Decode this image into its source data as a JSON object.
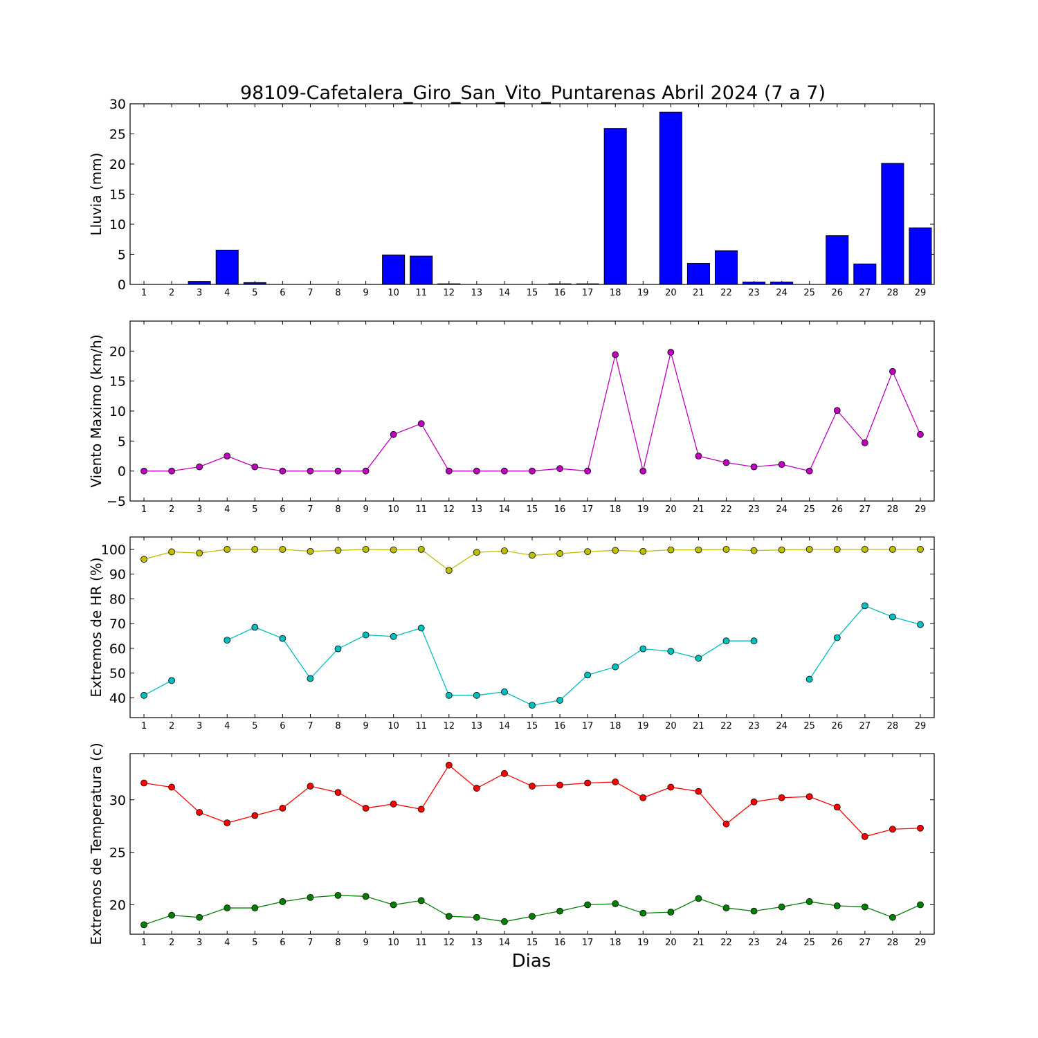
{
  "title": "98109-Cafetalera_Giro_San_Vito_Puntarenas Abril 2024  (7 a 7)",
  "xlabel": "Dias",
  "chart_data": [
    {
      "type": "bar",
      "ylabel": "Lluvia (mm)",
      "ylim": [
        0,
        30
      ],
      "yticks": [
        0,
        5,
        10,
        15,
        20,
        25,
        30
      ],
      "grid": false,
      "x": [
        1,
        2,
        3,
        4,
        5,
        6,
        7,
        8,
        9,
        10,
        11,
        12,
        13,
        14,
        15,
        16,
        17,
        18,
        19,
        20,
        21,
        22,
        23,
        24,
        25,
        26,
        27,
        28,
        29
      ],
      "series": [
        {
          "color": "#0000ff",
          "values": [
            0,
            0,
            0.5,
            5.7,
            0.3,
            0,
            0,
            0,
            0,
            4.9,
            4.7,
            0.1,
            0,
            0,
            0,
            0.1,
            0.1,
            25.9,
            0,
            28.6,
            3.5,
            5.6,
            0.4,
            0.4,
            0,
            8.1,
            3.4,
            20.1,
            9.4
          ]
        }
      ]
    },
    {
      "type": "line",
      "ylabel": "Viento Maximo (km/h)",
      "ylim": [
        -5,
        25
      ],
      "yticks": [
        -5,
        0,
        5,
        10,
        15,
        20
      ],
      "grid": false,
      "x": [
        1,
        2,
        3,
        4,
        5,
        6,
        7,
        8,
        9,
        10,
        11,
        12,
        13,
        14,
        15,
        16,
        17,
        18,
        19,
        20,
        21,
        22,
        23,
        24,
        25,
        26,
        27,
        28,
        29
      ],
      "series": [
        {
          "color": "#bf00bf",
          "values": [
            0,
            0,
            0.7,
            2.5,
            0.7,
            0,
            0,
            0,
            0,
            6.1,
            7.9,
            0,
            0,
            0,
            0,
            0.4,
            0,
            19.4,
            0,
            19.8,
            2.5,
            1.4,
            0.7,
            1.1,
            0,
            10.1,
            4.7,
            16.6,
            6.1
          ]
        }
      ]
    },
    {
      "type": "line",
      "ylabel": "Extremos de HR (%)",
      "ylim": [
        32,
        105
      ],
      "yticks": [
        40,
        50,
        60,
        70,
        80,
        90,
        100
      ],
      "grid": false,
      "x": [
        1,
        2,
        3,
        4,
        5,
        6,
        7,
        8,
        9,
        10,
        11,
        12,
        13,
        14,
        15,
        16,
        17,
        18,
        19,
        20,
        21,
        22,
        23,
        24,
        25,
        26,
        27,
        28,
        29
      ],
      "series": [
        {
          "color": "#bfbf00",
          "values": [
            96,
            99,
            98.5,
            100,
            100,
            100,
            99.2,
            99.6,
            100,
            99.8,
            100,
            91.5,
            98.8,
            99.4,
            97.6,
            98.3,
            99.1,
            99.6,
            99.2,
            99.8,
            99.8,
            100,
            99.5,
            99.8,
            100,
            100,
            100,
            100,
            100
          ]
        },
        {
          "color": "#00bfbf",
          "values": [
            41,
            47,
            null,
            63.3,
            68.5,
            64,
            47.8,
            59.8,
            65.4,
            64.8,
            68.2,
            41,
            41,
            42.4,
            37,
            39,
            49.2,
            52.5,
            59.8,
            58.8,
            56,
            63,
            63,
            null,
            47.5,
            64.3,
            77.2,
            72.7,
            69.6
          ]
        }
      ]
    },
    {
      "type": "line",
      "ylabel": "Extremos de Temperatura (c)",
      "ylim": [
        17.2,
        34.4
      ],
      "yticks": [
        20,
        25,
        30
      ],
      "grid": false,
      "x": [
        1,
        2,
        3,
        4,
        5,
        6,
        7,
        8,
        9,
        10,
        11,
        12,
        13,
        14,
        15,
        16,
        17,
        18,
        19,
        20,
        21,
        22,
        23,
        24,
        25,
        26,
        27,
        28,
        29
      ],
      "series": [
        {
          "color": "#ff0000",
          "values": [
            31.6,
            31.2,
            28.8,
            27.8,
            28.5,
            29.2,
            31.3,
            30.7,
            29.2,
            29.6,
            29.1,
            33.3,
            31.1,
            32.5,
            31.3,
            31.4,
            31.6,
            31.7,
            30.2,
            31.2,
            30.8,
            27.7,
            29.8,
            30.2,
            30.3,
            29.3,
            26.5,
            27.2,
            27.3
          ]
        },
        {
          "color": "#007f00",
          "values": [
            18.1,
            19,
            18.8,
            19.7,
            19.7,
            20.3,
            20.7,
            20.9,
            20.8,
            20,
            20.4,
            18.9,
            18.8,
            18.4,
            18.9,
            19.4,
            20,
            20.1,
            19.2,
            19.3,
            20.6,
            19.7,
            19.4,
            19.8,
            20.3,
            19.9,
            19.8,
            18.8,
            20
          ]
        }
      ]
    }
  ]
}
